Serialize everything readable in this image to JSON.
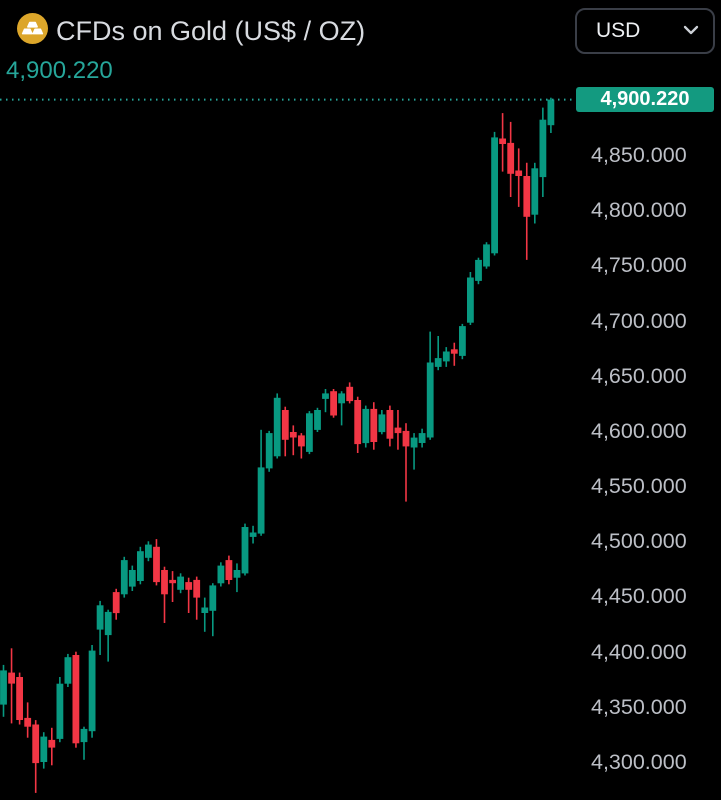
{
  "header": {
    "title": "CFDs on Gold (US$ / OZ)",
    "last_price": "4,900.220",
    "icon": "gold-coin-icon"
  },
  "currency_selector": {
    "value": "USD",
    "chevron_icon": "chevron-down-icon"
  },
  "price_axis": {
    "current_price_label": "4,900.220"
  },
  "colors": {
    "background": "#000000",
    "up": "#089981",
    "down": "#f23645",
    "accent_teal": "#26a69a",
    "badge_bg": "#139a80",
    "badge_text": "#ffffff"
  },
  "chart_data": {
    "type": "candlestick",
    "title": "CFDs on Gold (US$ / OZ)",
    "current_price": 4900.22,
    "ylim": [
      4266,
      4990
    ],
    "grid": false,
    "y_ticks": [
      {
        "price": 4850,
        "label": "4,850.000"
      },
      {
        "price": 4800,
        "label": "4,800.000"
      },
      {
        "price": 4750,
        "label": "4,750.000"
      },
      {
        "price": 4700,
        "label": "4,700.000"
      },
      {
        "price": 4650,
        "label": "4,650.000"
      },
      {
        "price": 4600,
        "label": "4,600.000"
      },
      {
        "price": 4550,
        "label": "4,550.000"
      },
      {
        "price": 4500,
        "label": "4,500.000"
      },
      {
        "price": 4450,
        "label": "4,450.000"
      },
      {
        "price": 4400,
        "label": "4,400.000"
      },
      {
        "price": 4350,
        "label": "4,350.000"
      },
      {
        "price": 4300,
        "label": "4,300.000"
      }
    ],
    "candles_format": [
      "open",
      "high",
      "low",
      "close"
    ],
    "candles": [
      [
        4352,
        4388,
        4341,
        4383
      ],
      [
        4381,
        4403,
        4335,
        4371
      ],
      [
        4377,
        4381,
        4334,
        4338
      ],
      [
        4340,
        4354,
        4322,
        4332
      ],
      [
        4334,
        4338,
        4272,
        4299
      ],
      [
        4300,
        4327,
        4294,
        4323
      ],
      [
        4320,
        4331,
        4297,
        4313
      ],
      [
        4321,
        4377,
        4318,
        4371
      ],
      [
        4371,
        4398,
        4368,
        4395
      ],
      [
        4397,
        4400,
        4313,
        4317
      ],
      [
        4318,
        4332,
        4302,
        4330
      ],
      [
        4328,
        4406,
        4322,
        4401
      ],
      [
        4420,
        4446,
        4397,
        4442
      ],
      [
        4415,
        4438,
        4391,
        4436
      ],
      [
        4454,
        4457,
        4429,
        4435
      ],
      [
        4452,
        4486,
        4449,
        4483
      ],
      [
        4459,
        4478,
        4455,
        4474
      ],
      [
        4464,
        4495,
        4461,
        4491
      ],
      [
        4485,
        4500,
        4482,
        4497
      ],
      [
        4495,
        4502,
        4460,
        4463
      ],
      [
        4474,
        4477,
        4426,
        4452
      ],
      [
        4465,
        4473,
        4445,
        4462
      ],
      [
        4456,
        4471,
        4453,
        4468
      ],
      [
        4463,
        4467,
        4435,
        4456
      ],
      [
        4465,
        4468,
        4429,
        4449
      ],
      [
        4435,
        4449,
        4418,
        4440
      ],
      [
        4437,
        4462,
        4414,
        4460
      ],
      [
        4462,
        4481,
        4459,
        4478
      ],
      [
        4483,
        4487,
        4461,
        4465
      ],
      [
        4467,
        4480,
        4454,
        4474
      ],
      [
        4471,
        4516,
        4469,
        4513
      ],
      [
        4504,
        4514,
        4498,
        4508
      ],
      [
        4507,
        4601,
        4505,
        4567
      ],
      [
        4566,
        4600,
        4563,
        4598
      ],
      [
        4577,
        4634,
        4575,
        4630
      ],
      [
        4619,
        4622,
        4577,
        4592
      ],
      [
        4599,
        4605,
        4578,
        4594
      ],
      [
        4596,
        4598,
        4575,
        4586
      ],
      [
        4581,
        4618,
        4579,
        4616
      ],
      [
        4601,
        4621,
        4599,
        4619
      ],
      [
        4629,
        4638,
        4617,
        4634
      ],
      [
        4636,
        4638,
        4612,
        4614
      ],
      [
        4625,
        4636,
        4605,
        4634
      ],
      [
        4640,
        4644,
        4625,
        4627
      ],
      [
        4628,
        4631,
        4580,
        4588
      ],
      [
        4589,
        4623,
        4585,
        4620
      ],
      [
        4620,
        4626,
        4583,
        4590
      ],
      [
        4599,
        4619,
        4597,
        4615
      ],
      [
        4619,
        4623,
        4586,
        4593
      ],
      [
        4603,
        4619,
        4583,
        4598
      ],
      [
        4600,
        4607,
        4536,
        4586
      ],
      [
        4585,
        4598,
        4565,
        4594
      ],
      [
        4589,
        4602,
        4585,
        4598
      ],
      [
        4594,
        4690,
        4592,
        4662
      ],
      [
        4658,
        4686,
        4655,
        4666
      ],
      [
        4663,
        4676,
        4658,
        4672
      ],
      [
        4674,
        4680,
        4659,
        4670
      ],
      [
        4668,
        4697,
        4665,
        4695
      ],
      [
        4698,
        4744,
        4696,
        4739
      ],
      [
        4736,
        4757,
        4733,
        4755
      ],
      [
        4749,
        4771,
        4747,
        4769
      ],
      [
        4761,
        4871,
        4759,
        4866
      ],
      [
        4865,
        4888,
        4835,
        4860
      ],
      [
        4861,
        4880,
        4812,
        4833
      ],
      [
        4836,
        4856,
        4803,
        4831
      ],
      [
        4831,
        4843,
        4755,
        4794
      ],
      [
        4796,
        4843,
        4788,
        4838
      ],
      [
        4830,
        4893,
        4812,
        4882
      ],
      [
        4877,
        4902,
        4870,
        4900.22
      ]
    ]
  }
}
